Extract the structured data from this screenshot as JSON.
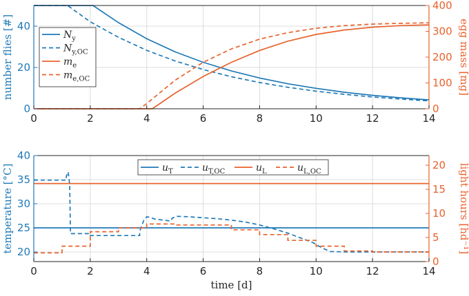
{
  "colors": {
    "blue": "#1f7ab8",
    "orange": "#e8622c",
    "grid": "#dcdcdc",
    "axis": "#262626"
  },
  "chart_data": [
    {
      "type": "line",
      "title": "",
      "xlabel": "",
      "ylabel_left": "number flies [#]",
      "ylabel_right": "egg mass [mg]",
      "xlim": [
        0,
        14
      ],
      "ylim_left": [
        0,
        50
      ],
      "ylim_right": [
        0,
        400
      ],
      "xticks": [
        "0",
        "2",
        "4",
        "6",
        "8",
        "10",
        "12",
        "14"
      ],
      "yticks_left": [
        "0",
        "20",
        "40"
      ],
      "yticks_right": [
        "0",
        "100",
        "200",
        "300",
        "400"
      ],
      "legend_position": "left",
      "series": [
        {
          "name": "N_y",
          "label_main": "N",
          "label_sub": "y",
          "axis": "left",
          "color": "blue",
          "dash": "solid",
          "x": [
            0,
            2.1,
            3,
            4,
            5,
            6,
            7,
            8,
            9,
            10,
            11,
            12,
            13,
            14
          ],
          "y": [
            50,
            50,
            41.7,
            33.9,
            27.6,
            22.5,
            18.3,
            14.9,
            12.1,
            9.9,
            8.0,
            6.5,
            5.3,
            4.3
          ]
        },
        {
          "name": "N_y,OC",
          "label_main": "N",
          "label_sub": "y,OC",
          "axis": "left",
          "color": "blue",
          "dash": "dashed",
          "x": [
            0,
            1.2,
            2,
            3,
            4,
            5,
            6,
            7,
            8,
            9,
            10,
            11,
            12,
            13,
            14
          ],
          "y": [
            50,
            50,
            42.1,
            34.6,
            28.3,
            23.2,
            19.0,
            15.5,
            12.7,
            10.4,
            8.5,
            7.0,
            5.7,
            4.7,
            3.8
          ]
        },
        {
          "name": "m_e",
          "label_main": "m",
          "label_sub": "e",
          "axis": "right",
          "color": "orange",
          "dash": "solid",
          "x": [
            0,
            4.2,
            5,
            6,
            7,
            8,
            9,
            10,
            11,
            12,
            13,
            14
          ],
          "y": [
            0,
            0,
            60,
            125,
            180,
            226,
            262,
            288,
            305,
            316,
            322,
            325
          ]
        },
        {
          "name": "m_e,OC",
          "label_main": "m",
          "label_sub": "e,OC",
          "axis": "right",
          "color": "orange",
          "dash": "dashed",
          "x": [
            0,
            3.75,
            4,
            5,
            6,
            7,
            8,
            9,
            10,
            11,
            12,
            13,
            14
          ],
          "y": [
            0,
            0,
            20,
            110,
            180,
            232,
            270,
            295,
            312,
            322,
            328,
            331,
            333
          ]
        }
      ]
    },
    {
      "type": "line",
      "title": "",
      "xlabel": "time [d]",
      "ylabel_left": "temperature [°C]",
      "ylabel_right": "light hours [hd⁻¹]",
      "xlim": [
        0,
        14
      ],
      "ylim_left": [
        18,
        40
      ],
      "ylim_right": [
        0,
        22
      ],
      "xticks": [
        "0",
        "2",
        "4",
        "6",
        "8",
        "10",
        "12",
        "14"
      ],
      "yticks_left": [
        "20",
        "25",
        "30",
        "35",
        "40"
      ],
      "yticks_right": [
        "0",
        "5",
        "10",
        "15",
        "20"
      ],
      "legend_position": "top-center",
      "series": [
        {
          "name": "u_T",
          "label_main": "u",
          "label_sub": "T",
          "axis": "left",
          "color": "blue",
          "dash": "solid",
          "x": [
            0,
            14
          ],
          "y": [
            25,
            25
          ]
        },
        {
          "name": "u_T,OC",
          "label_main": "u",
          "label_sub": "T,OC",
          "axis": "left",
          "color": "blue",
          "dash": "dashed",
          "x": [
            0,
            1.15,
            1.15,
            1.22,
            1.27,
            1.3,
            2.0,
            2.0,
            3.75,
            3.75,
            3.9,
            4.0,
            4.1,
            4.3,
            4.6,
            4.85,
            4.9,
            5.05,
            5.5,
            6,
            6.5,
            7,
            7.5,
            8,
            8.5,
            9,
            9.5,
            9.9,
            10.1,
            10.3,
            10.5,
            11,
            12,
            13,
            14
          ],
          "y": [
            34.9,
            34.9,
            35.7,
            36.6,
            34.0,
            23.8,
            23.8,
            23.4,
            23.4,
            24.3,
            26.6,
            27.3,
            27.2,
            26.8,
            26.6,
            26.4,
            27.0,
            27.4,
            27.3,
            27.1,
            26.9,
            26.6,
            26.2,
            25.6,
            24.8,
            23.9,
            22.8,
            21.9,
            21.2,
            20.6,
            20.1,
            20.0,
            20.0,
            20.0,
            20.0
          ]
        },
        {
          "name": "u_L",
          "label_main": "u",
          "label_sub": "L",
          "axis": "right",
          "color": "orange",
          "dash": "solid",
          "x": [
            0,
            14
          ],
          "y": [
            16.2,
            16.2
          ]
        },
        {
          "name": "u_L,OC",
          "label_main": "u",
          "label_sub": "L,OC",
          "axis": "right",
          "color": "orange",
          "dash": "dashed",
          "step": true,
          "x": [
            0,
            1,
            2,
            3,
            4,
            5,
            6,
            7,
            8,
            9,
            10,
            11,
            12,
            13,
            14
          ],
          "y": [
            1.8,
            3.2,
            6.2,
            7.0,
            7.8,
            7.6,
            7.6,
            6.6,
            5.6,
            4.4,
            3.2,
            2.2,
            2.0,
            2.0,
            2.0
          ]
        }
      ]
    }
  ]
}
